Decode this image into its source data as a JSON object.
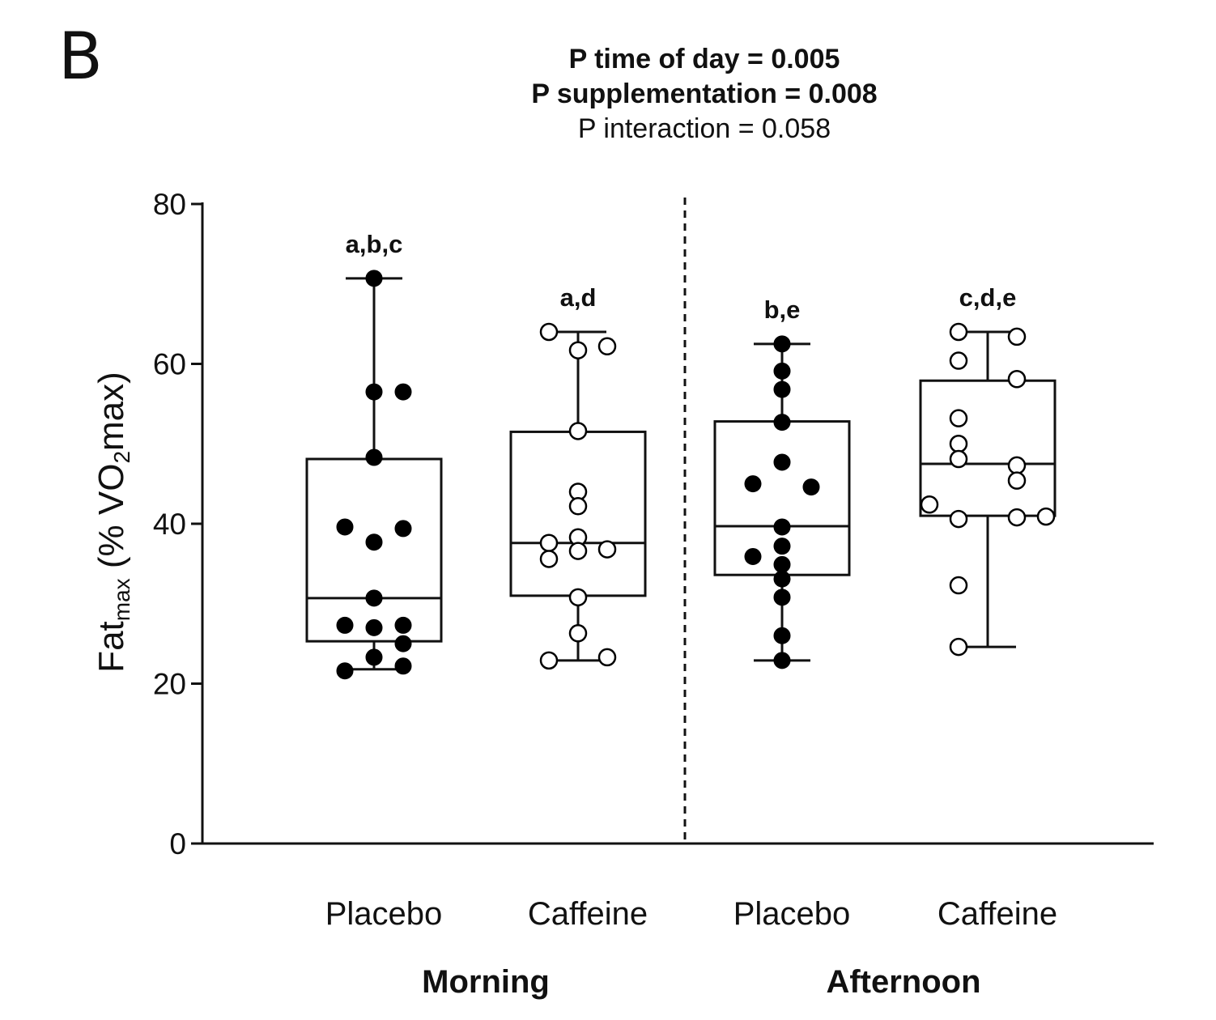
{
  "panel_label": "B",
  "stats": {
    "time_of_day": "P time of day = 0.005",
    "supplementation": "P supplementation = 0.008",
    "interaction": "P interaction = 0.058"
  },
  "chart_data": {
    "type": "box",
    "ylabel": {
      "main": "Fat",
      "sub": "max",
      "rest": " (% VO",
      "sub2": "2",
      "end": "max)"
    },
    "ylim": [
      0,
      80
    ],
    "yticks": [
      0,
      20,
      40,
      60,
      80
    ],
    "group_labels": [
      "Morning",
      "Afternoon"
    ],
    "groups": [
      {
        "name": "Placebo",
        "period": "Morning",
        "marker": "filled",
        "annotation": "a,b,c",
        "whisker_low": 21.8,
        "q1": 25.3,
        "median": 30.7,
        "q3": 48.1,
        "whisker_high": 70.7,
        "points": [
          [
            0,
            70.7
          ],
          [
            0,
            56.5
          ],
          [
            1,
            56.5
          ],
          [
            0,
            48.3
          ],
          [
            -1,
            39.6
          ],
          [
            1,
            39.4
          ],
          [
            0,
            37.7
          ],
          [
            0,
            30.7
          ],
          [
            -1,
            27.3
          ],
          [
            0,
            27.0
          ],
          [
            1,
            27.3
          ],
          [
            1,
            25.0
          ],
          [
            0,
            23.3
          ],
          [
            -1,
            21.6
          ],
          [
            1,
            22.2
          ]
        ]
      },
      {
        "name": "Caffeine",
        "period": "Morning",
        "marker": "open",
        "annotation": "a,d",
        "whisker_low": 22.9,
        "q1": 31.0,
        "median": 37.6,
        "q3": 51.5,
        "whisker_high": 64.0,
        "points": [
          [
            -1,
            64.0
          ],
          [
            0,
            61.7
          ],
          [
            1,
            62.2
          ],
          [
            0,
            51.6
          ],
          [
            0,
            44.0
          ],
          [
            0,
            42.2
          ],
          [
            -1,
            37.6
          ],
          [
            0,
            38.3
          ],
          [
            0,
            36.6
          ],
          [
            1,
            36.8
          ],
          [
            -1,
            35.6
          ],
          [
            0,
            30.8
          ],
          [
            0,
            26.3
          ],
          [
            -1,
            22.9
          ],
          [
            1,
            23.3
          ]
        ]
      },
      {
        "name": "Placebo",
        "period": "Afternoon",
        "marker": "filled",
        "annotation": "b,e",
        "whisker_low": 22.9,
        "q1": 33.6,
        "median": 39.7,
        "q3": 52.8,
        "whisker_high": 62.5,
        "points": [
          [
            0,
            62.5
          ],
          [
            0,
            59.1
          ],
          [
            0,
            56.8
          ],
          [
            0,
            52.7
          ],
          [
            0,
            47.7
          ],
          [
            -1,
            45.0
          ],
          [
            1,
            44.6
          ],
          [
            0,
            39.6
          ],
          [
            0,
            37.2
          ],
          [
            -1,
            35.9
          ],
          [
            0,
            34.9
          ],
          [
            0,
            33.1
          ],
          [
            0,
            30.8
          ],
          [
            0,
            26.0
          ],
          [
            0,
            22.9
          ]
        ]
      },
      {
        "name": "Caffeine",
        "period": "Afternoon",
        "marker": "open",
        "annotation": "c,d,e",
        "whisker_low": 24.6,
        "q1": 41.0,
        "median": 47.5,
        "q3": 57.9,
        "whisker_high": 64.0,
        "points": [
          [
            -1,
            64.0
          ],
          [
            1,
            63.4
          ],
          [
            -1,
            60.4
          ],
          [
            1,
            58.1
          ],
          [
            -1,
            53.2
          ],
          [
            -1,
            50.0
          ],
          [
            -1,
            48.1
          ],
          [
            1,
            47.3
          ],
          [
            1,
            45.4
          ],
          [
            -2,
            42.4
          ],
          [
            -1,
            40.6
          ],
          [
            1,
            40.8
          ],
          [
            2,
            40.9
          ],
          [
            -1,
            32.3
          ],
          [
            -1,
            24.6
          ]
        ]
      }
    ]
  }
}
